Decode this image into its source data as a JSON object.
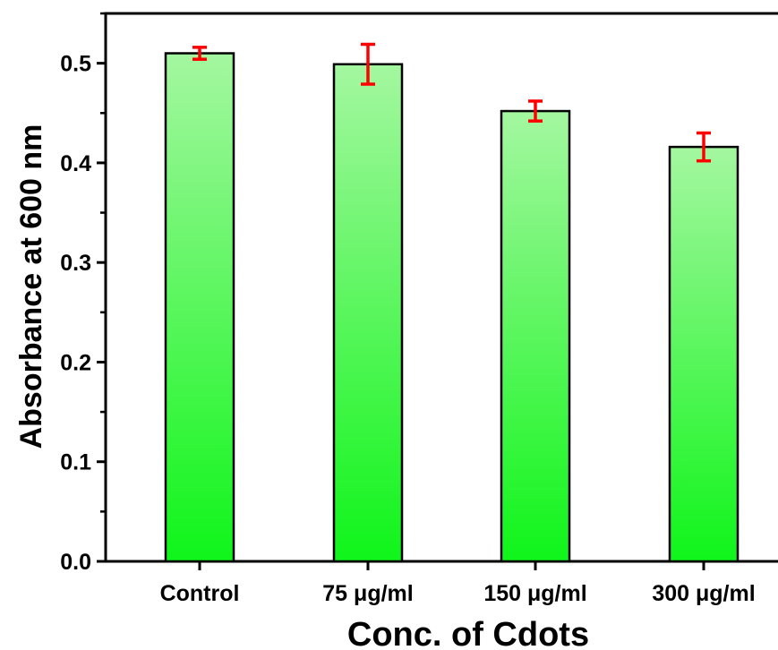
{
  "chart_data": {
    "type": "bar",
    "title": "",
    "xlabel": "Conc. of Cdots",
    "ylabel": "Absorbance at 600 nm",
    "categories": [
      "Control",
      "75 μg/ml",
      "150 μg/ml",
      "300 μg/ml"
    ],
    "values": [
      0.51,
      0.499,
      0.452,
      0.416
    ],
    "errors": [
      0.006,
      0.02,
      0.01,
      0.014
    ],
    "ylim": [
      0,
      0.55
    ],
    "yticks": [
      0.0,
      0.1,
      0.2,
      0.3,
      0.4,
      0.5
    ],
    "ytick_labels": [
      "0.0",
      "0.1",
      "0.2",
      "0.3",
      "0.4",
      "0.5"
    ],
    "grid": false,
    "legend": "none",
    "colors": {
      "bar_top": "#a4f7a0",
      "bar_bottom": "#0ff51a",
      "bar_edge": "#000000",
      "error_bar": "#ff0000"
    }
  }
}
